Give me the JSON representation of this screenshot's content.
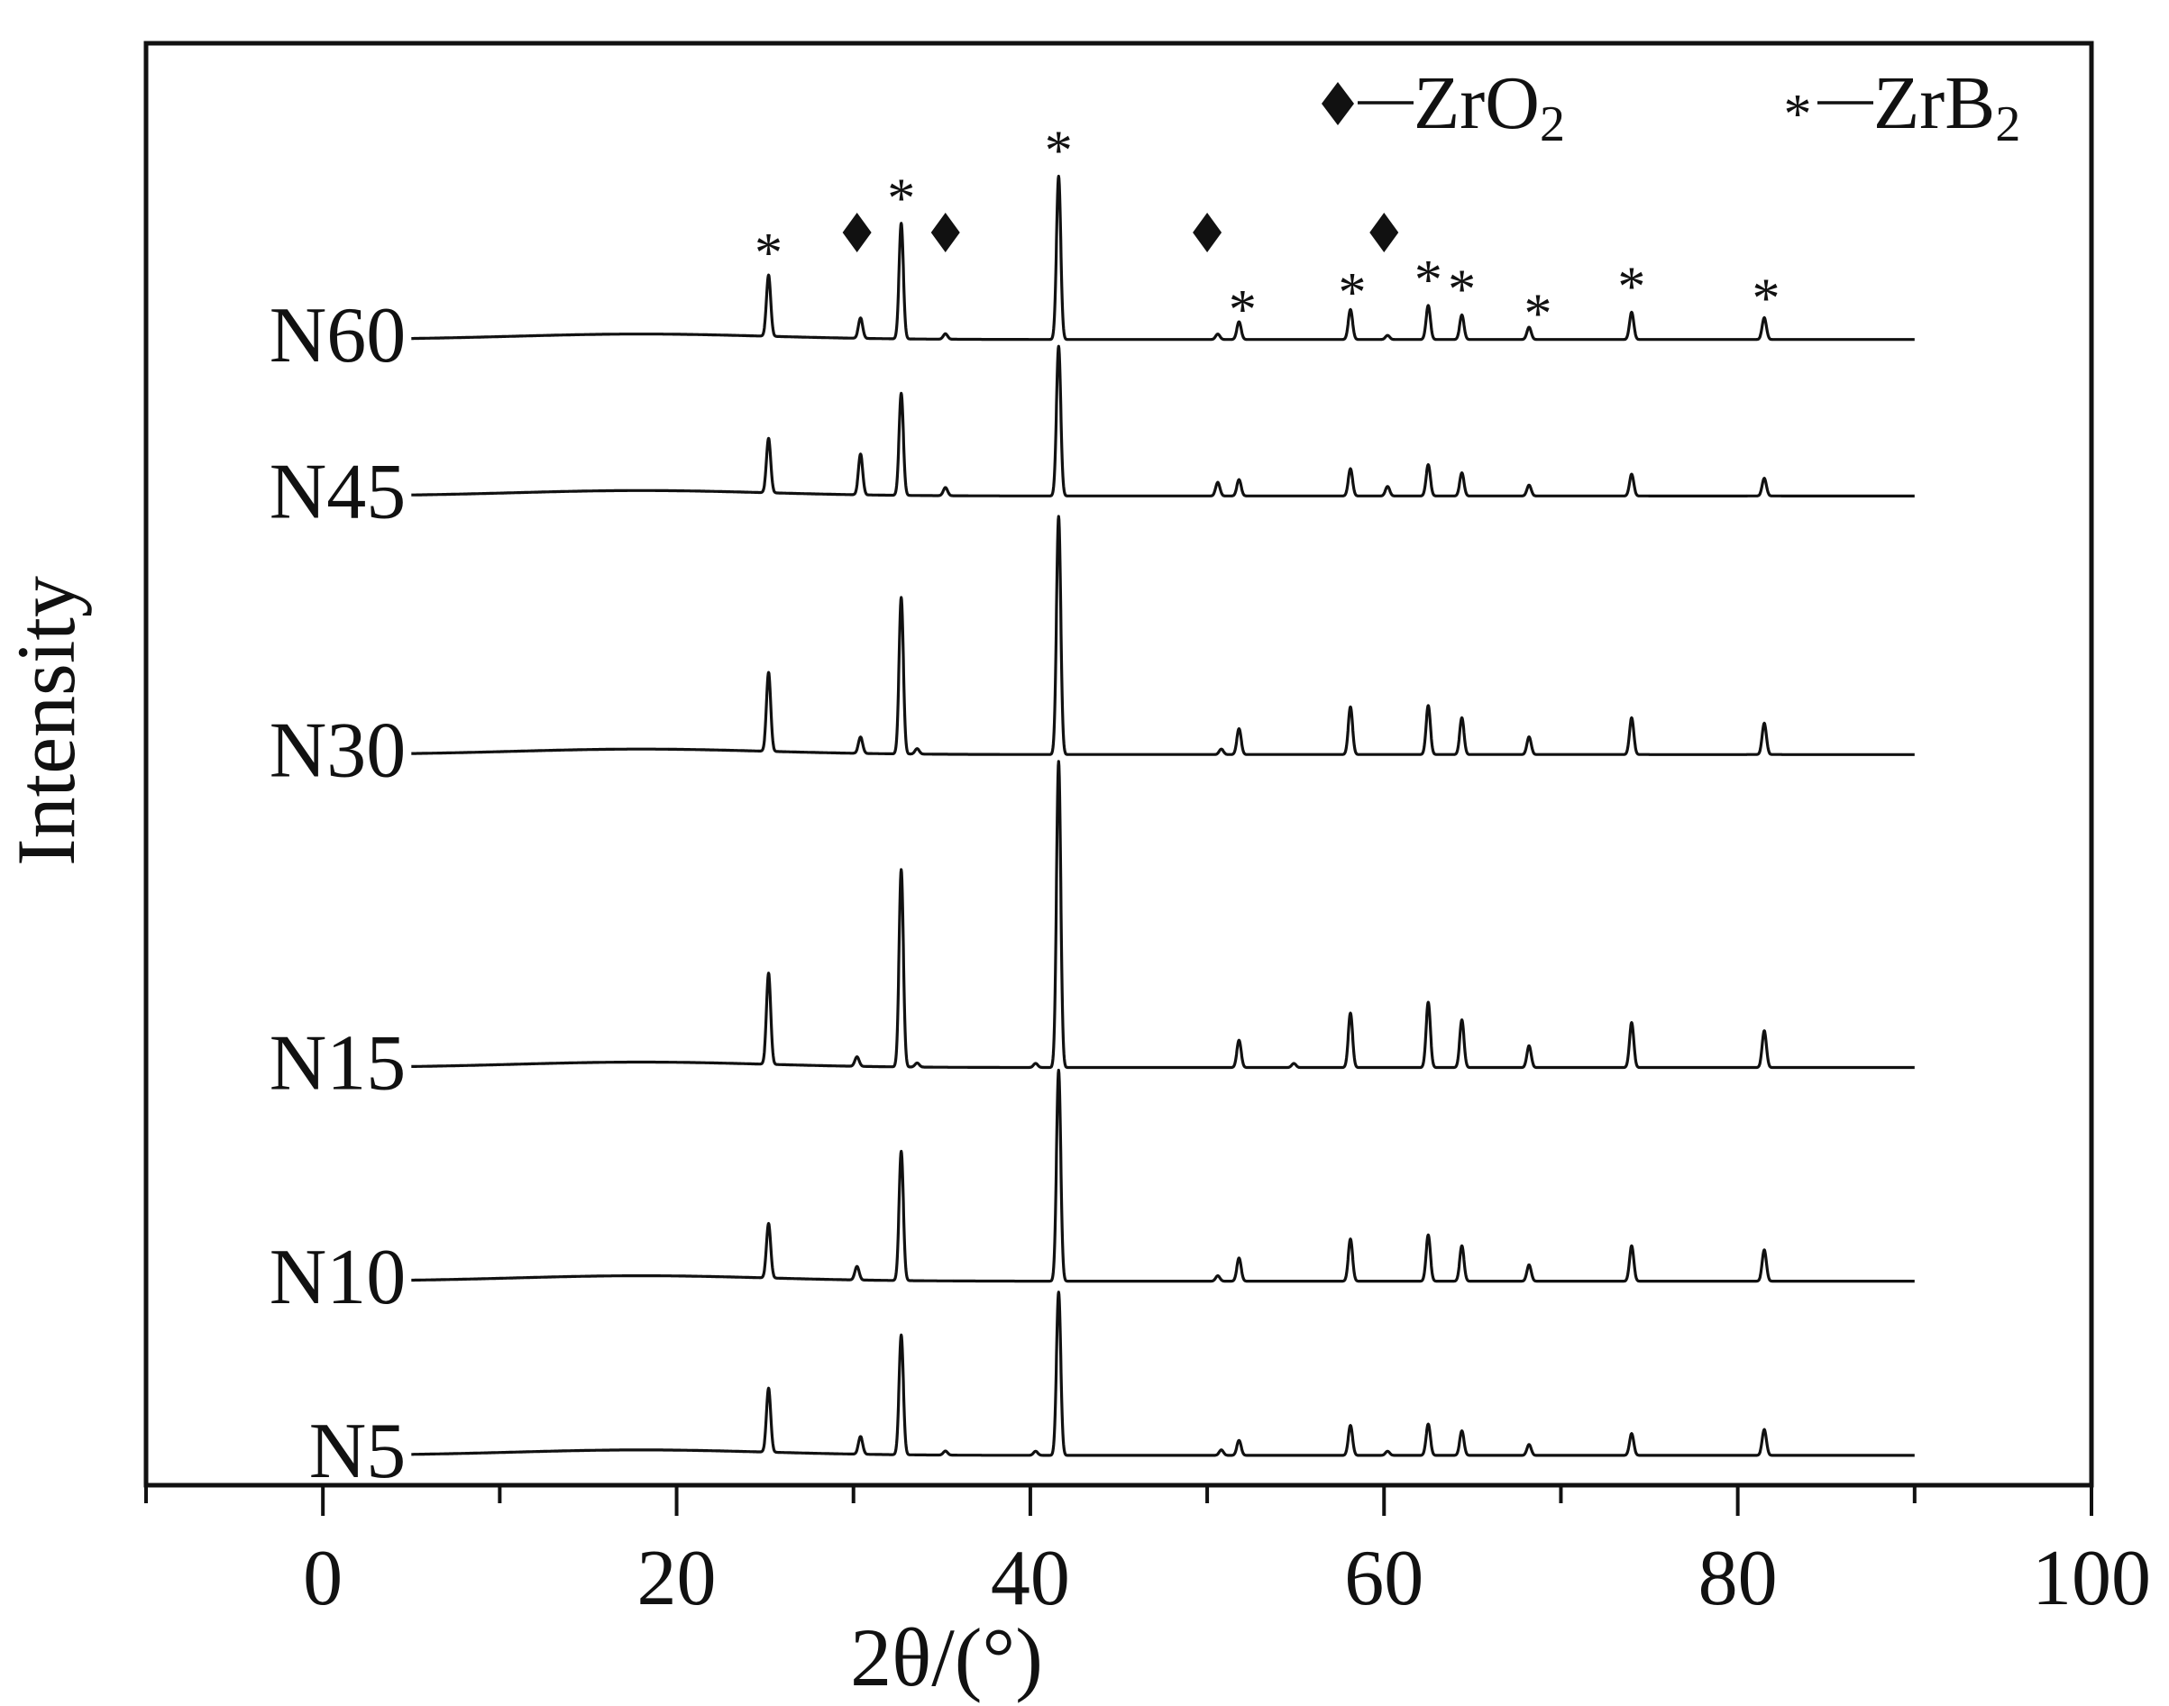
{
  "chart_data": {
    "type": "line",
    "title": "",
    "xlabel": "2θ/(°)",
    "ylabel": "Intensity",
    "xlim": [
      -10,
      100
    ],
    "xticks": [
      "0",
      "20",
      "40",
      "60",
      "80",
      "100"
    ],
    "grid": false,
    "legend": [
      {
        "symbol": "◆",
        "label": "ZrO",
        "sub": "2"
      },
      {
        "symbol": "*",
        "label": "ZrB",
        "sub": "2"
      }
    ],
    "legend_position": "top-right",
    "zrb2_peaks": [
      25.2,
      32.7,
      41.6,
      51.8,
      58.1,
      62.5,
      64.4,
      68.2,
      74.0,
      81.5
    ],
    "zro2_peaks": [
      30.2,
      35.2,
      50.4,
      60.1
    ],
    "annotations": [
      {
        "symbol": "*",
        "x": 25.2
      },
      {
        "symbol": "◆",
        "x": 30.2
      },
      {
        "symbol": "*",
        "x": 32.7
      },
      {
        "symbol": "◆",
        "x": 35.2
      },
      {
        "symbol": "*",
        "x": 41.6
      },
      {
        "symbol": "◆",
        "x": 50.0
      },
      {
        "symbol": "*",
        "x": 52.0
      },
      {
        "symbol": "*",
        "x": 58.2
      },
      {
        "symbol": "◆",
        "x": 60.0
      },
      {
        "symbol": "*",
        "x": 62.5
      },
      {
        "symbol": "*",
        "x": 64.4
      },
      {
        "symbol": "*",
        "x": 68.7
      },
      {
        "symbol": "*",
        "x": 74.0
      },
      {
        "symbol": "*",
        "x": 81.6
      }
    ],
    "series": [
      {
        "name": "N60",
        "x_range": [
          5,
          90
        ],
        "baseline": 0.83,
        "peaks": [
          [
            25.2,
            0.045
          ],
          [
            30.4,
            0.015
          ],
          [
            32.7,
            0.085
          ],
          [
            35.2,
            0.004
          ],
          [
            41.6,
            0.12
          ],
          [
            50.6,
            0.004
          ],
          [
            51.8,
            0.013
          ],
          [
            58.1,
            0.022
          ],
          [
            60.2,
            0.003
          ],
          [
            62.5,
            0.025
          ],
          [
            64.4,
            0.018
          ],
          [
            68.2,
            0.009
          ],
          [
            74.0,
            0.02
          ],
          [
            81.5,
            0.016
          ]
        ]
      },
      {
        "name": "N45",
        "x_range": [
          5,
          90
        ],
        "baseline": 0.715,
        "peaks": [
          [
            25.2,
            0.04
          ],
          [
            30.4,
            0.03
          ],
          [
            32.7,
            0.075
          ],
          [
            35.2,
            0.006
          ],
          [
            41.6,
            0.11
          ],
          [
            50.6,
            0.01
          ],
          [
            51.8,
            0.012
          ],
          [
            58.1,
            0.02
          ],
          [
            60.2,
            0.007
          ],
          [
            62.5,
            0.023
          ],
          [
            64.4,
            0.017
          ],
          [
            68.2,
            0.008
          ],
          [
            74.0,
            0.016
          ],
          [
            81.5,
            0.013
          ]
        ]
      },
      {
        "name": "N30",
        "x_range": [
          5,
          90
        ],
        "baseline": 0.525,
        "peaks": [
          [
            25.2,
            0.058
          ],
          [
            30.4,
            0.012
          ],
          [
            32.7,
            0.115
          ],
          [
            33.6,
            0.004
          ],
          [
            41.6,
            0.175
          ],
          [
            50.8,
            0.004
          ],
          [
            51.8,
            0.019
          ],
          [
            58.1,
            0.035
          ],
          [
            62.5,
            0.036
          ],
          [
            64.4,
            0.027
          ],
          [
            68.2,
            0.013
          ],
          [
            74.0,
            0.027
          ],
          [
            81.5,
            0.023
          ]
        ]
      },
      {
        "name": "N15",
        "x_range": [
          5,
          90
        ],
        "baseline": 0.295,
        "peaks": [
          [
            25.2,
            0.067
          ],
          [
            30.2,
            0.007
          ],
          [
            32.7,
            0.145
          ],
          [
            33.6,
            0.003
          ],
          [
            40.3,
            0.003
          ],
          [
            41.6,
            0.225
          ],
          [
            51.8,
            0.02
          ],
          [
            54.9,
            0.003
          ],
          [
            58.1,
            0.04
          ],
          [
            62.5,
            0.048
          ],
          [
            64.4,
            0.035
          ],
          [
            68.2,
            0.016
          ],
          [
            74.0,
            0.033
          ],
          [
            81.5,
            0.027
          ]
        ]
      },
      {
        "name": "N10",
        "x_range": [
          5,
          90
        ],
        "baseline": 0.138,
        "peaks": [
          [
            25.2,
            0.04
          ],
          [
            30.2,
            0.01
          ],
          [
            32.7,
            0.095
          ],
          [
            41.6,
            0.155
          ],
          [
            50.6,
            0.004
          ],
          [
            51.8,
            0.017
          ],
          [
            58.1,
            0.031
          ],
          [
            62.5,
            0.034
          ],
          [
            64.4,
            0.026
          ],
          [
            68.2,
            0.012
          ],
          [
            74.0,
            0.026
          ],
          [
            81.5,
            0.023
          ]
        ]
      },
      {
        "name": "N5",
        "x_range": [
          5,
          90
        ],
        "baseline": 0.01,
        "peaks": [
          [
            25.2,
            0.047
          ],
          [
            30.4,
            0.013
          ],
          [
            32.7,
            0.088
          ],
          [
            35.2,
            0.003
          ],
          [
            40.3,
            0.003
          ],
          [
            41.6,
            0.12
          ],
          [
            50.8,
            0.004
          ],
          [
            51.8,
            0.011
          ],
          [
            58.1,
            0.022
          ],
          [
            60.2,
            0.003
          ],
          [
            62.5,
            0.023
          ],
          [
            64.4,
            0.018
          ],
          [
            68.2,
            0.008
          ],
          [
            74.0,
            0.016
          ],
          [
            81.5,
            0.019
          ]
        ]
      }
    ]
  }
}
